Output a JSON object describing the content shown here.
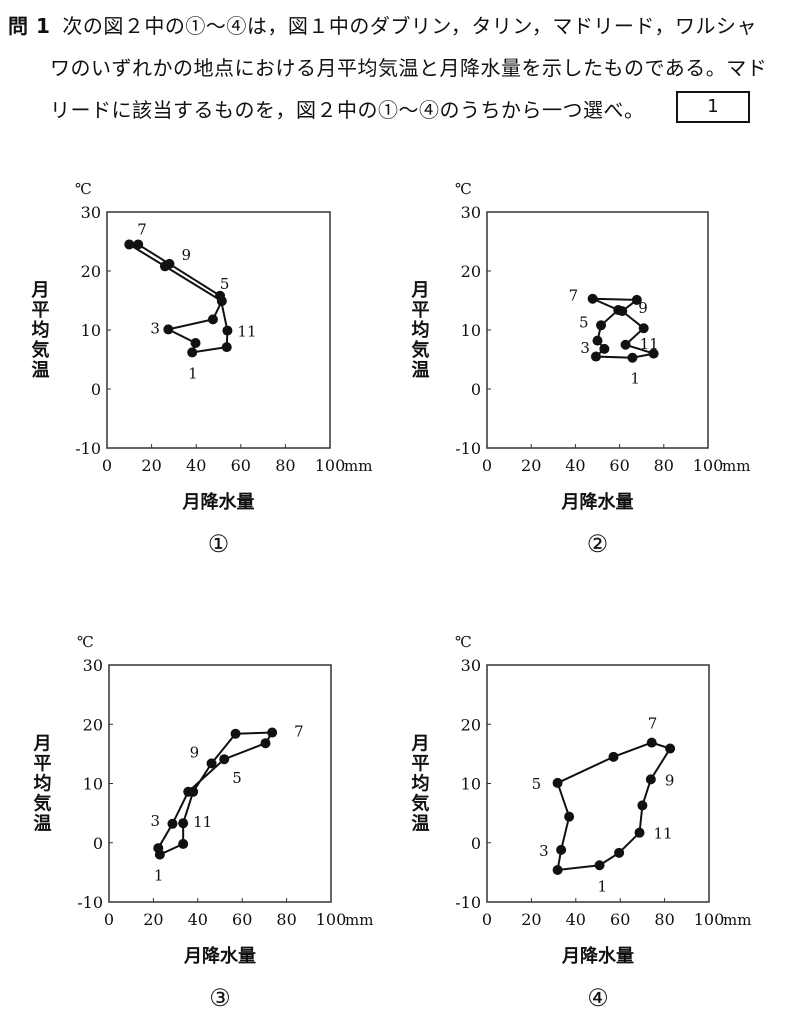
{
  "question": {
    "number": "問 1",
    "line1": "次の図２中の①～④は，図１中のダブリン，タリン，マドリード，ワルシャ",
    "line2": "ワのいずれかの地点における月平均気温と月降水量を示したものである。マド",
    "line3": "リードに該当するものを，図２中の①～④のうちから一つ選べ。",
    "answer_box": "1"
  },
  "chart_data": [
    {
      "type": "line",
      "id": "①",
      "xlabel": "月降水量",
      "ylabel": "月平均気温",
      "yunit": "℃",
      "xunit": "mm",
      "xlim": [
        0,
        100
      ],
      "ylim": [
        -10,
        30
      ],
      "xticks": [
        0,
        20,
        40,
        60,
        80,
        100
      ],
      "yticks": [
        -10,
        0,
        10,
        20,
        30
      ],
      "months": [
        1,
        2,
        3,
        4,
        5,
        6,
        7,
        8,
        9,
        10,
        11,
        12
      ],
      "precip": [
        38.2,
        39.7,
        27.5,
        47.5,
        51.5,
        26,
        10,
        14,
        28,
        50.7,
        54,
        53.7
      ],
      "temp": [
        6.2,
        7.8,
        10.1,
        11.8,
        14.9,
        20.8,
        24.5,
        24.5,
        21.2,
        15.8,
        9.9,
        7.1
      ],
      "labels": [
        {
          "month": "1",
          "text": "1"
        },
        {
          "month": "3",
          "text": "3"
        },
        {
          "month": "5",
          "text": "5"
        },
        {
          "month": "7",
          "text": "7"
        },
        {
          "month": "9",
          "text": "9"
        },
        {
          "month": "11",
          "text": "11"
        }
      ]
    },
    {
      "type": "line",
      "id": "②",
      "xlabel": "月降水量",
      "ylabel": "月平均気温",
      "yunit": "℃",
      "xunit": "mm",
      "xlim": [
        0,
        100
      ],
      "ylim": [
        -10,
        30
      ],
      "xticks": [
        0,
        20,
        40,
        60,
        80,
        100
      ],
      "yticks": [
        -10,
        0,
        10,
        20,
        30
      ],
      "months": [
        1,
        2,
        3,
        4,
        5,
        6,
        7,
        8,
        9,
        10,
        11,
        12
      ],
      "precip": [
        65.8,
        49.3,
        53.1,
        50,
        51.6,
        59.4,
        47.8,
        67.8,
        61.2,
        70.9,
        62.7,
        75.4
      ],
      "temp": [
        5.3,
        5.5,
        6.8,
        8.2,
        10.8,
        13.4,
        15.3,
        15.1,
        13.2,
        10.3,
        7.5,
        6.0
      ],
      "labels": [
        {
          "month": "1",
          "text": "1"
        },
        {
          "month": "3",
          "text": "3"
        },
        {
          "month": "5",
          "text": "5"
        },
        {
          "month": "7",
          "text": "7"
        },
        {
          "month": "9",
          "text": "9"
        },
        {
          "month": "11",
          "text": "11"
        }
      ]
    },
    {
      "type": "line",
      "id": "③",
      "xlabel": "月降水量",
      "ylabel": "月平均気温",
      "yunit": "℃",
      "xunit": "mm",
      "xlim": [
        0,
        100
      ],
      "ylim": [
        -10,
        30
      ],
      "xticks": [
        0,
        20,
        40,
        60,
        80,
        100
      ],
      "yticks": [
        -10,
        0,
        10,
        20,
        30
      ],
      "months": [
        1,
        2,
        3,
        4,
        5,
        6,
        7,
        8,
        9,
        10,
        11,
        12
      ],
      "precip": [
        22.9,
        22.2,
        28.6,
        35.7,
        51.9,
        70.5,
        73.5,
        57,
        46.2,
        37.9,
        33.4,
        33.4
      ],
      "temp": [
        -2.0,
        -0.9,
        3.2,
        8.6,
        14.1,
        16.8,
        18.6,
        18.4,
        13.4,
        8.6,
        3.3,
        -0.2
      ],
      "labels": [
        {
          "month": "1",
          "text": "1"
        },
        {
          "month": "3",
          "text": "3"
        },
        {
          "month": "5",
          "text": "5"
        },
        {
          "month": "7",
          "text": "7"
        },
        {
          "month": "9",
          "text": "9"
        },
        {
          "month": "11",
          "text": "11"
        }
      ]
    },
    {
      "type": "line",
      "id": "④",
      "xlabel": "月降水量",
      "ylabel": "月平均気温",
      "yunit": "℃",
      "xunit": "mm",
      "xlim": [
        0,
        100
      ],
      "ylim": [
        -10,
        30
      ],
      "xticks": [
        0,
        20,
        40,
        60,
        80,
        100
      ],
      "yticks": [
        -10,
        0,
        10,
        20,
        30
      ],
      "months": [
        1,
        2,
        3,
        4,
        5,
        6,
        7,
        8,
        9,
        10,
        11,
        12
      ],
      "precip": [
        50.7,
        31.8,
        33.4,
        37,
        31.8,
        57,
        74.2,
        82.5,
        73.8,
        70,
        68.7,
        59.5
      ],
      "temp": [
        -3.8,
        -4.6,
        -1.2,
        4.4,
        10.1,
        14.5,
        16.9,
        15.9,
        10.7,
        6.3,
        1.7,
        -1.7
      ],
      "labels": [
        {
          "month": "1",
          "text": "1"
        },
        {
          "month": "3",
          "text": "3"
        },
        {
          "month": "5",
          "text": "5"
        },
        {
          "month": "7",
          "text": "7"
        },
        {
          "month": "9",
          "text": "9"
        },
        {
          "month": "11",
          "text": "11"
        }
      ]
    }
  ]
}
